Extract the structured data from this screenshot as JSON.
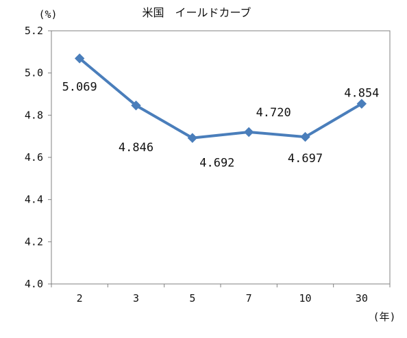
{
  "chart_data": {
    "type": "line",
    "title": "米国　イールドカーブ",
    "ylabel": "(%)",
    "xlabel": "(年)",
    "categories": [
      "2",
      "3",
      "5",
      "7",
      "10",
      "30"
    ],
    "y_ticks": [
      "5.2",
      "5.0",
      "4.8",
      "4.6",
      "4.4",
      "4.2",
      "4.0"
    ],
    "ylim": [
      4.0,
      5.2
    ],
    "grid": false,
    "legend": "none",
    "series": [
      {
        "values": [
          5.069,
          4.846,
          4.692,
          4.72,
          4.697,
          4.854
        ],
        "labels": [
          "5.069",
          "4.846",
          "4.692",
          "4.720",
          "4.697",
          "4.854"
        ],
        "color": "#4a7ebb"
      }
    ]
  }
}
